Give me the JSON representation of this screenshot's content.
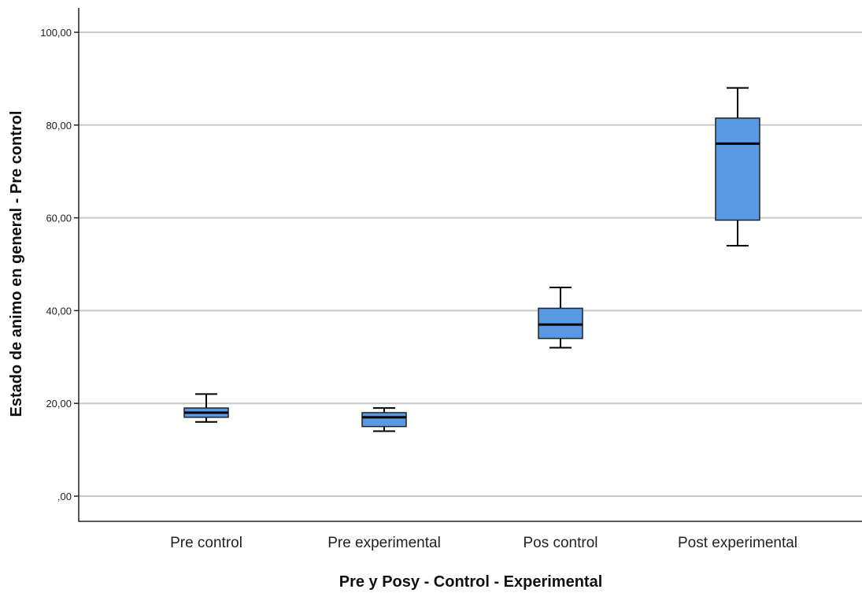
{
  "chart_data": {
    "type": "boxplot",
    "xlabel": "Pre y Posy - Control - Experimental",
    "ylabel": "Estado de animo en general - Pre control",
    "ylim": [
      -5,
      105
    ],
    "yticks": [
      0,
      20,
      40,
      60,
      80,
      100
    ],
    "ytick_labels": [
      ",00",
      "20,00",
      "40,00",
      "60,00",
      "80,00",
      "100,00"
    ],
    "grid": true,
    "box_color": "#5799e3",
    "categories": [
      "Pre control",
      "Pre experimental",
      "Pos control",
      "Post experimental"
    ],
    "boxes": [
      {
        "min": 16,
        "q1": 17,
        "median": 18,
        "q3": 19,
        "max": 22
      },
      {
        "min": 14,
        "q1": 15,
        "median": 17,
        "q3": 18,
        "max": 19
      },
      {
        "min": 32,
        "q1": 34,
        "median": 37,
        "q3": 40.5,
        "max": 45
      },
      {
        "min": 54,
        "q1": 59.5,
        "median": 76,
        "q3": 81.5,
        "max": 88
      }
    ]
  }
}
